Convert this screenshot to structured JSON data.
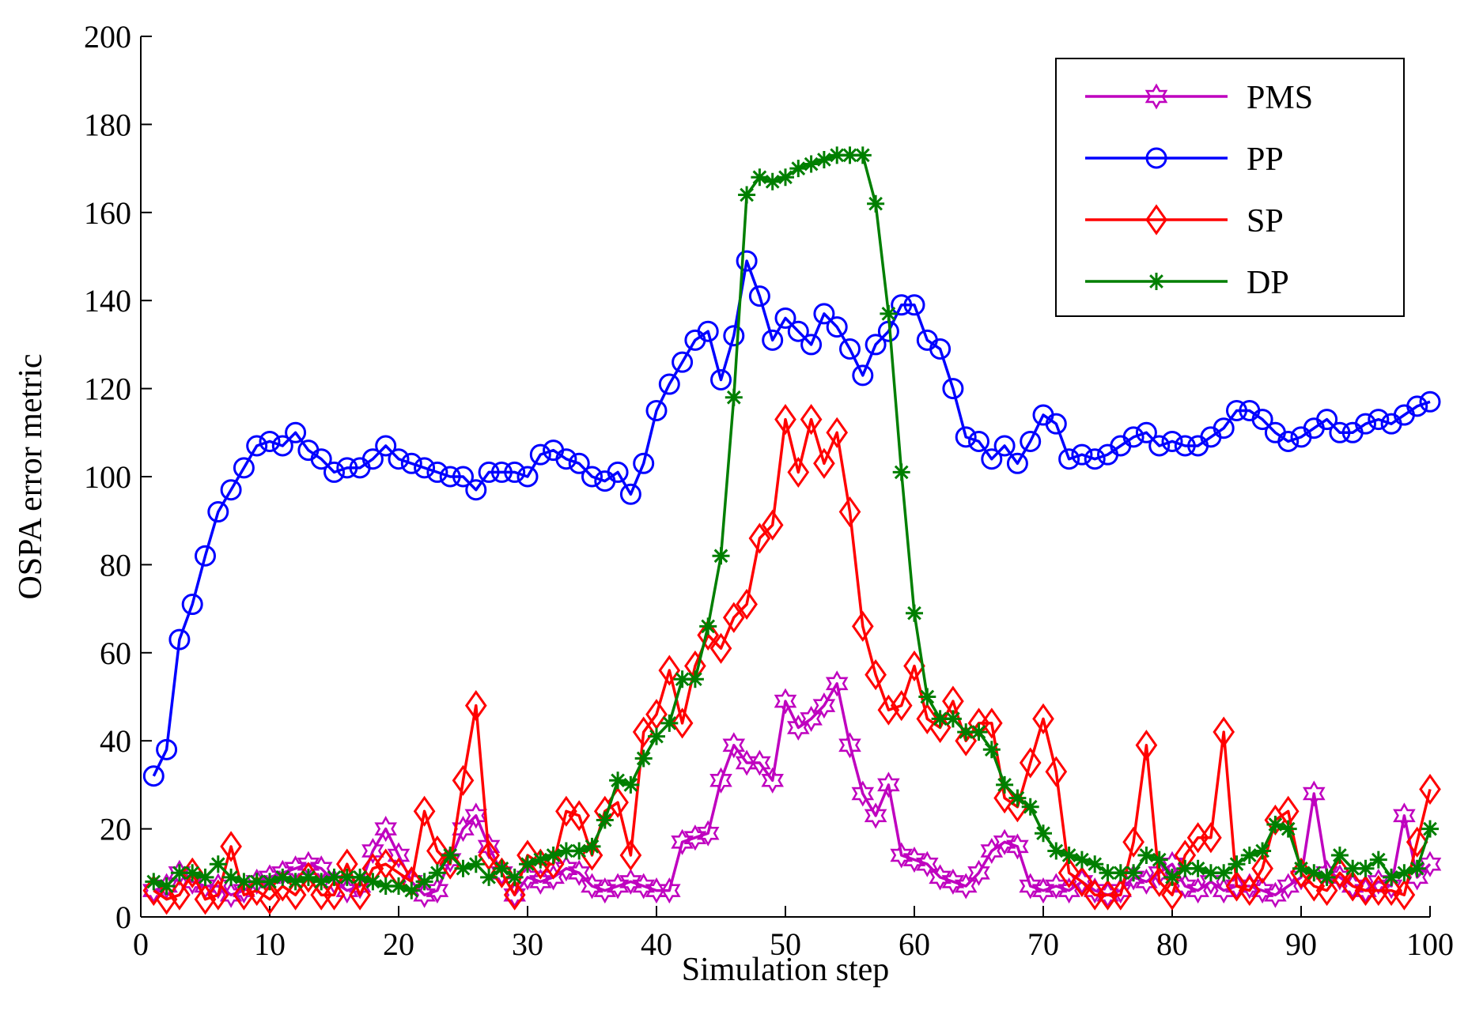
{
  "chart_data": {
    "type": "line",
    "xlabel": "Simulation step",
    "ylabel": "OSPA error metric",
    "xlim": [
      0,
      100
    ],
    "ylim": [
      0,
      200
    ],
    "xticks": [
      0,
      10,
      20,
      30,
      40,
      50,
      60,
      70,
      80,
      90,
      100
    ],
    "yticks": [
      0,
      20,
      40,
      60,
      80,
      100,
      120,
      140,
      160,
      180,
      200
    ],
    "grid": false,
    "legend_position": "top-right",
    "x": [
      1,
      2,
      3,
      4,
      5,
      6,
      7,
      8,
      9,
      10,
      11,
      12,
      13,
      14,
      15,
      16,
      17,
      18,
      19,
      20,
      21,
      22,
      23,
      24,
      25,
      26,
      27,
      28,
      29,
      30,
      31,
      32,
      33,
      34,
      35,
      36,
      37,
      38,
      39,
      40,
      41,
      42,
      43,
      44,
      45,
      46,
      47,
      48,
      49,
      50,
      51,
      52,
      53,
      54,
      55,
      56,
      57,
      58,
      59,
      60,
      61,
      62,
      63,
      64,
      65,
      66,
      67,
      68,
      69,
      70,
      71,
      72,
      73,
      74,
      75,
      76,
      77,
      78,
      79,
      80,
      81,
      82,
      83,
      84,
      85,
      86,
      87,
      88,
      89,
      90,
      91,
      92,
      93,
      94,
      95,
      96,
      97,
      98,
      99,
      100
    ],
    "series": [
      {
        "name": "PMS",
        "color": "#bf00bf",
        "marker": "hexagram",
        "values": [
          6,
          7,
          10,
          8,
          7,
          7,
          5,
          6,
          8,
          9,
          10,
          11,
          12,
          11,
          8,
          6,
          7,
          15,
          20,
          14,
          8,
          5,
          6,
          13,
          20,
          23,
          16,
          10,
          5,
          9,
          8,
          9,
          11,
          10,
          7,
          6,
          7,
          8,
          7,
          6,
          6,
          17,
          18,
          19,
          31,
          39,
          35,
          35,
          31,
          49,
          43,
          45,
          48,
          53,
          39,
          28,
          23,
          30,
          14,
          13,
          12,
          9,
          8,
          7,
          10,
          15,
          17,
          16,
          7,
          6,
          7,
          6,
          8,
          6,
          5,
          6,
          9,
          8,
          10,
          12,
          7,
          6,
          8,
          6,
          7,
          7,
          6,
          5,
          7,
          9,
          28,
          10,
          9,
          7,
          6,
          8,
          7,
          23,
          9,
          12
        ]
      },
      {
        "name": "PP",
        "color": "#0000ff",
        "marker": "circle",
        "values": [
          32,
          38,
          63,
          71,
          82,
          92,
          97,
          102,
          107,
          108,
          107,
          110,
          106,
          104,
          101,
          102,
          102,
          104,
          107,
          104,
          103,
          102,
          101,
          100,
          100,
          97,
          101,
          101,
          101,
          100,
          105,
          106,
          104,
          103,
          100,
          99,
          101,
          96,
          103,
          115,
          121,
          126,
          131,
          133,
          122,
          132,
          149,
          141,
          131,
          136,
          133,
          130,
          137,
          134,
          129,
          123,
          130,
          133,
          139,
          139,
          131,
          129,
          120,
          109,
          108,
          104,
          107,
          103,
          108,
          114,
          112,
          104,
          105,
          104,
          105,
          107,
          109,
          110,
          107,
          108,
          107,
          107,
          109,
          111,
          115,
          115,
          113,
          110,
          108,
          109,
          111,
          113,
          110,
          110,
          112,
          113,
          112,
          114,
          116,
          117
        ]
      },
      {
        "name": "SP",
        "color": "#ff0000",
        "marker": "diamond",
        "values": [
          6,
          4,
          5,
          10,
          4,
          5,
          16,
          5,
          6,
          4,
          7,
          5,
          9,
          5,
          5,
          12,
          5,
          11,
          12,
          10,
          8,
          24,
          15,
          12,
          31,
          48,
          14,
          10,
          5,
          14,
          12,
          12,
          24,
          23,
          14,
          24,
          26,
          14,
          42,
          46,
          56,
          44,
          57,
          64,
          61,
          68,
          71,
          86,
          89,
          113,
          101,
          113,
          103,
          110,
          92,
          66,
          55,
          47,
          48,
          57,
          45,
          43,
          49,
          40,
          44,
          44,
          27,
          25,
          35,
          45,
          33,
          10,
          8,
          5,
          5,
          5,
          17,
          39,
          8,
          5,
          14,
          18,
          18,
          42,
          7,
          6,
          11,
          22,
          24,
          10,
          7,
          6,
          10,
          7,
          6,
          6,
          6,
          5,
          17,
          29
        ]
      },
      {
        "name": "DP",
        "color": "#007f00",
        "marker": "star",
        "values": [
          8,
          7,
          10,
          10,
          9,
          12,
          9,
          8,
          8,
          8,
          9,
          8,
          9,
          8,
          9,
          9,
          9,
          8,
          7,
          7,
          6,
          8,
          10,
          14,
          11,
          12,
          9,
          11,
          9,
          12,
          13,
          14,
          15,
          15,
          16,
          22,
          31,
          30,
          36,
          41,
          44,
          54,
          54,
          66,
          82,
          118,
          164,
          168,
          167,
          168,
          170,
          171,
          172,
          173,
          173,
          173,
          162,
          137,
          101,
          69,
          50,
          45,
          45,
          42,
          42,
          38,
          30,
          27,
          25,
          19,
          15,
          14,
          13,
          12,
          10,
          10,
          10,
          14,
          13,
          9,
          11,
          11,
          10,
          10,
          12,
          14,
          15,
          21,
          20,
          11,
          10,
          9,
          14,
          11,
          11,
          13,
          9,
          10,
          11,
          20
        ]
      }
    ]
  }
}
